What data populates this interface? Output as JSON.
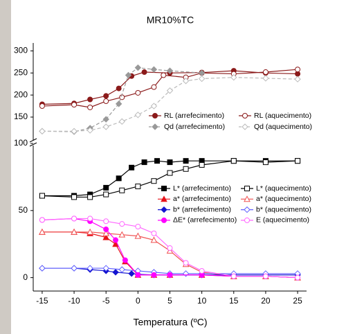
{
  "chart_data": [
    {
      "type": "line",
      "title": "MR10%TC",
      "xlim": [
        -16.4,
        26.4
      ],
      "ylim": [
        95,
        318
      ],
      "yticks": [
        150,
        200,
        250,
        300
      ],
      "legend": "right",
      "series": [
        {
          "name": "RL (arrefecimento)",
          "color": "#8b1a1a",
          "marker": "circle",
          "filled": true,
          "dash": false,
          "x": [
            -15,
            -10,
            -7.5,
            -5,
            -3,
            -1,
            1,
            5,
            10,
            15,
            20,
            25
          ],
          "values": [
            179,
            181,
            190,
            198,
            215,
            243,
            252,
            250,
            251,
            255,
            250,
            248
          ]
        },
        {
          "name": "RL (aquecimento)",
          "color": "#8b1a1a",
          "marker": "circle",
          "filled": false,
          "dash": false,
          "x": [
            -15,
            -10,
            -7.5,
            -5,
            -2.5,
            0,
            2.5,
            4,
            7.5,
            10,
            15,
            20,
            25
          ],
          "values": [
            175,
            178,
            172,
            186,
            195,
            205,
            218,
            245,
            240,
            250,
            248,
            252,
            258
          ]
        },
        {
          "name": "Qd (arrefecimento)",
          "color": "#999999",
          "marker": "diamond",
          "filled": true,
          "dash": true,
          "x": [
            -15,
            -10,
            -7.5,
            -5,
            -3,
            -1.5,
            0,
            2.5,
            5,
            10
          ],
          "values": [
            118,
            117,
            125,
            145,
            180,
            245,
            262,
            258,
            255,
            250
          ]
        },
        {
          "name": "Qd (aquecimento)",
          "color": "#bbbbbb",
          "marker": "diamond",
          "filled": false,
          "dash": true,
          "x": [
            -15,
            -10,
            -7.5,
            -5,
            -2.5,
            0,
            2.5,
            5,
            7.5,
            10,
            15,
            20,
            25
          ],
          "values": [
            118,
            118,
            120,
            128,
            140,
            155,
            175,
            210,
            232,
            237,
            240,
            238,
            236
          ]
        }
      ]
    },
    {
      "type": "line",
      "xlabel": "Temperatura (ºC)",
      "xlim": [
        -16.4,
        26.4
      ],
      "xticks": [
        -15,
        -10,
        -5,
        0,
        5,
        10,
        15,
        20,
        25
      ],
      "ylim": [
        -10,
        100
      ],
      "yticks": [
        0,
        50,
        100
      ],
      "legend": "center right",
      "series": [
        {
          "name": "L* (arrefecimento)",
          "color": "#000000",
          "marker": "square",
          "filled": true,
          "dash": false,
          "x": [
            -15,
            -10,
            -7.5,
            -5,
            -3,
            -1,
            1,
            3,
            5,
            7.5,
            10,
            15,
            20,
            25
          ],
          "values": [
            61,
            61,
            62,
            67,
            74,
            82,
            86,
            87,
            86,
            87,
            87,
            87,
            87,
            87
          ]
        },
        {
          "name": "L* (aquecimento)",
          "color": "#000000",
          "marker": "square",
          "filled": false,
          "dash": false,
          "x": [
            -15,
            -10,
            -7.5,
            -5,
            -2.5,
            0,
            2.5,
            5,
            7.5,
            10,
            15,
            20,
            25
          ],
          "values": [
            61,
            60,
            60,
            62,
            65,
            68,
            72,
            78,
            81,
            84,
            87,
            86,
            87
          ]
        },
        {
          "name": "a* (arrefecimento)",
          "color": "#e8121a",
          "marker": "triangle",
          "filled": true,
          "dash": false,
          "x": [
            -15,
            -10,
            -7.5,
            -5,
            -3.5,
            -2,
            0,
            2.5,
            5,
            10,
            15,
            20,
            25
          ],
          "values": [
            34,
            34,
            33,
            30,
            25,
            12,
            2,
            2,
            2,
            2,
            1,
            1,
            0
          ]
        },
        {
          "name": "a* (aquecimento)",
          "color": "#f05050",
          "marker": "triangle",
          "filled": false,
          "dash": false,
          "x": [
            -15,
            -10,
            -7.5,
            -5,
            -2.5,
            0,
            2.5,
            5,
            7.5,
            10,
            15,
            20,
            25
          ],
          "values": [
            34,
            34,
            34,
            33,
            32,
            31,
            28,
            20,
            10,
            4,
            1,
            1,
            0
          ]
        },
        {
          "name": "b* (arrefecimento)",
          "color": "#1414d0",
          "marker": "diamond",
          "filled": true,
          "dash": false,
          "x": [
            -15,
            -10,
            -7.5,
            -5,
            -3.5,
            -1,
            0,
            2.5,
            5,
            10,
            15,
            20,
            25
          ],
          "values": [
            7,
            7,
            6,
            5,
            4,
            3,
            2.5,
            2,
            2,
            2,
            2,
            2,
            2
          ]
        },
        {
          "name": "b* (aquecimento)",
          "color": "#6060ff",
          "marker": "diamond",
          "filled": false,
          "dash": false,
          "x": [
            -15,
            -10,
            -7.5,
            -5,
            -2.5,
            0,
            2.5,
            5,
            7.5,
            10,
            15,
            20,
            25
          ],
          "values": [
            7,
            7,
            7,
            7,
            6,
            5,
            4,
            3,
            3,
            3,
            3,
            3,
            3
          ]
        },
        {
          "name": "ΔE* (arrefecimento)",
          "color": "#ff00ff",
          "marker": "circle",
          "filled": true,
          "dash": false,
          "x": [
            -15,
            -10,
            -7.5,
            -5,
            -3.5,
            -2,
            0,
            2.5,
            5,
            10,
            15,
            20,
            25
          ],
          "values": [
            43,
            44,
            42,
            36,
            28,
            13,
            2,
            2,
            2,
            2,
            1,
            1,
            0
          ]
        },
        {
          "name": "E (aquecimento)",
          "color": "#ff66ff",
          "marker": "circle",
          "filled": false,
          "dash": false,
          "x": [
            -15,
            -10,
            -7.5,
            -5,
            -2.5,
            0,
            2.5,
            5,
            7.5,
            10,
            15,
            20,
            25
          ],
          "values": [
            43,
            44,
            44,
            42,
            40,
            38,
            33,
            22,
            11,
            5,
            1,
            1,
            0
          ]
        }
      ]
    }
  ]
}
